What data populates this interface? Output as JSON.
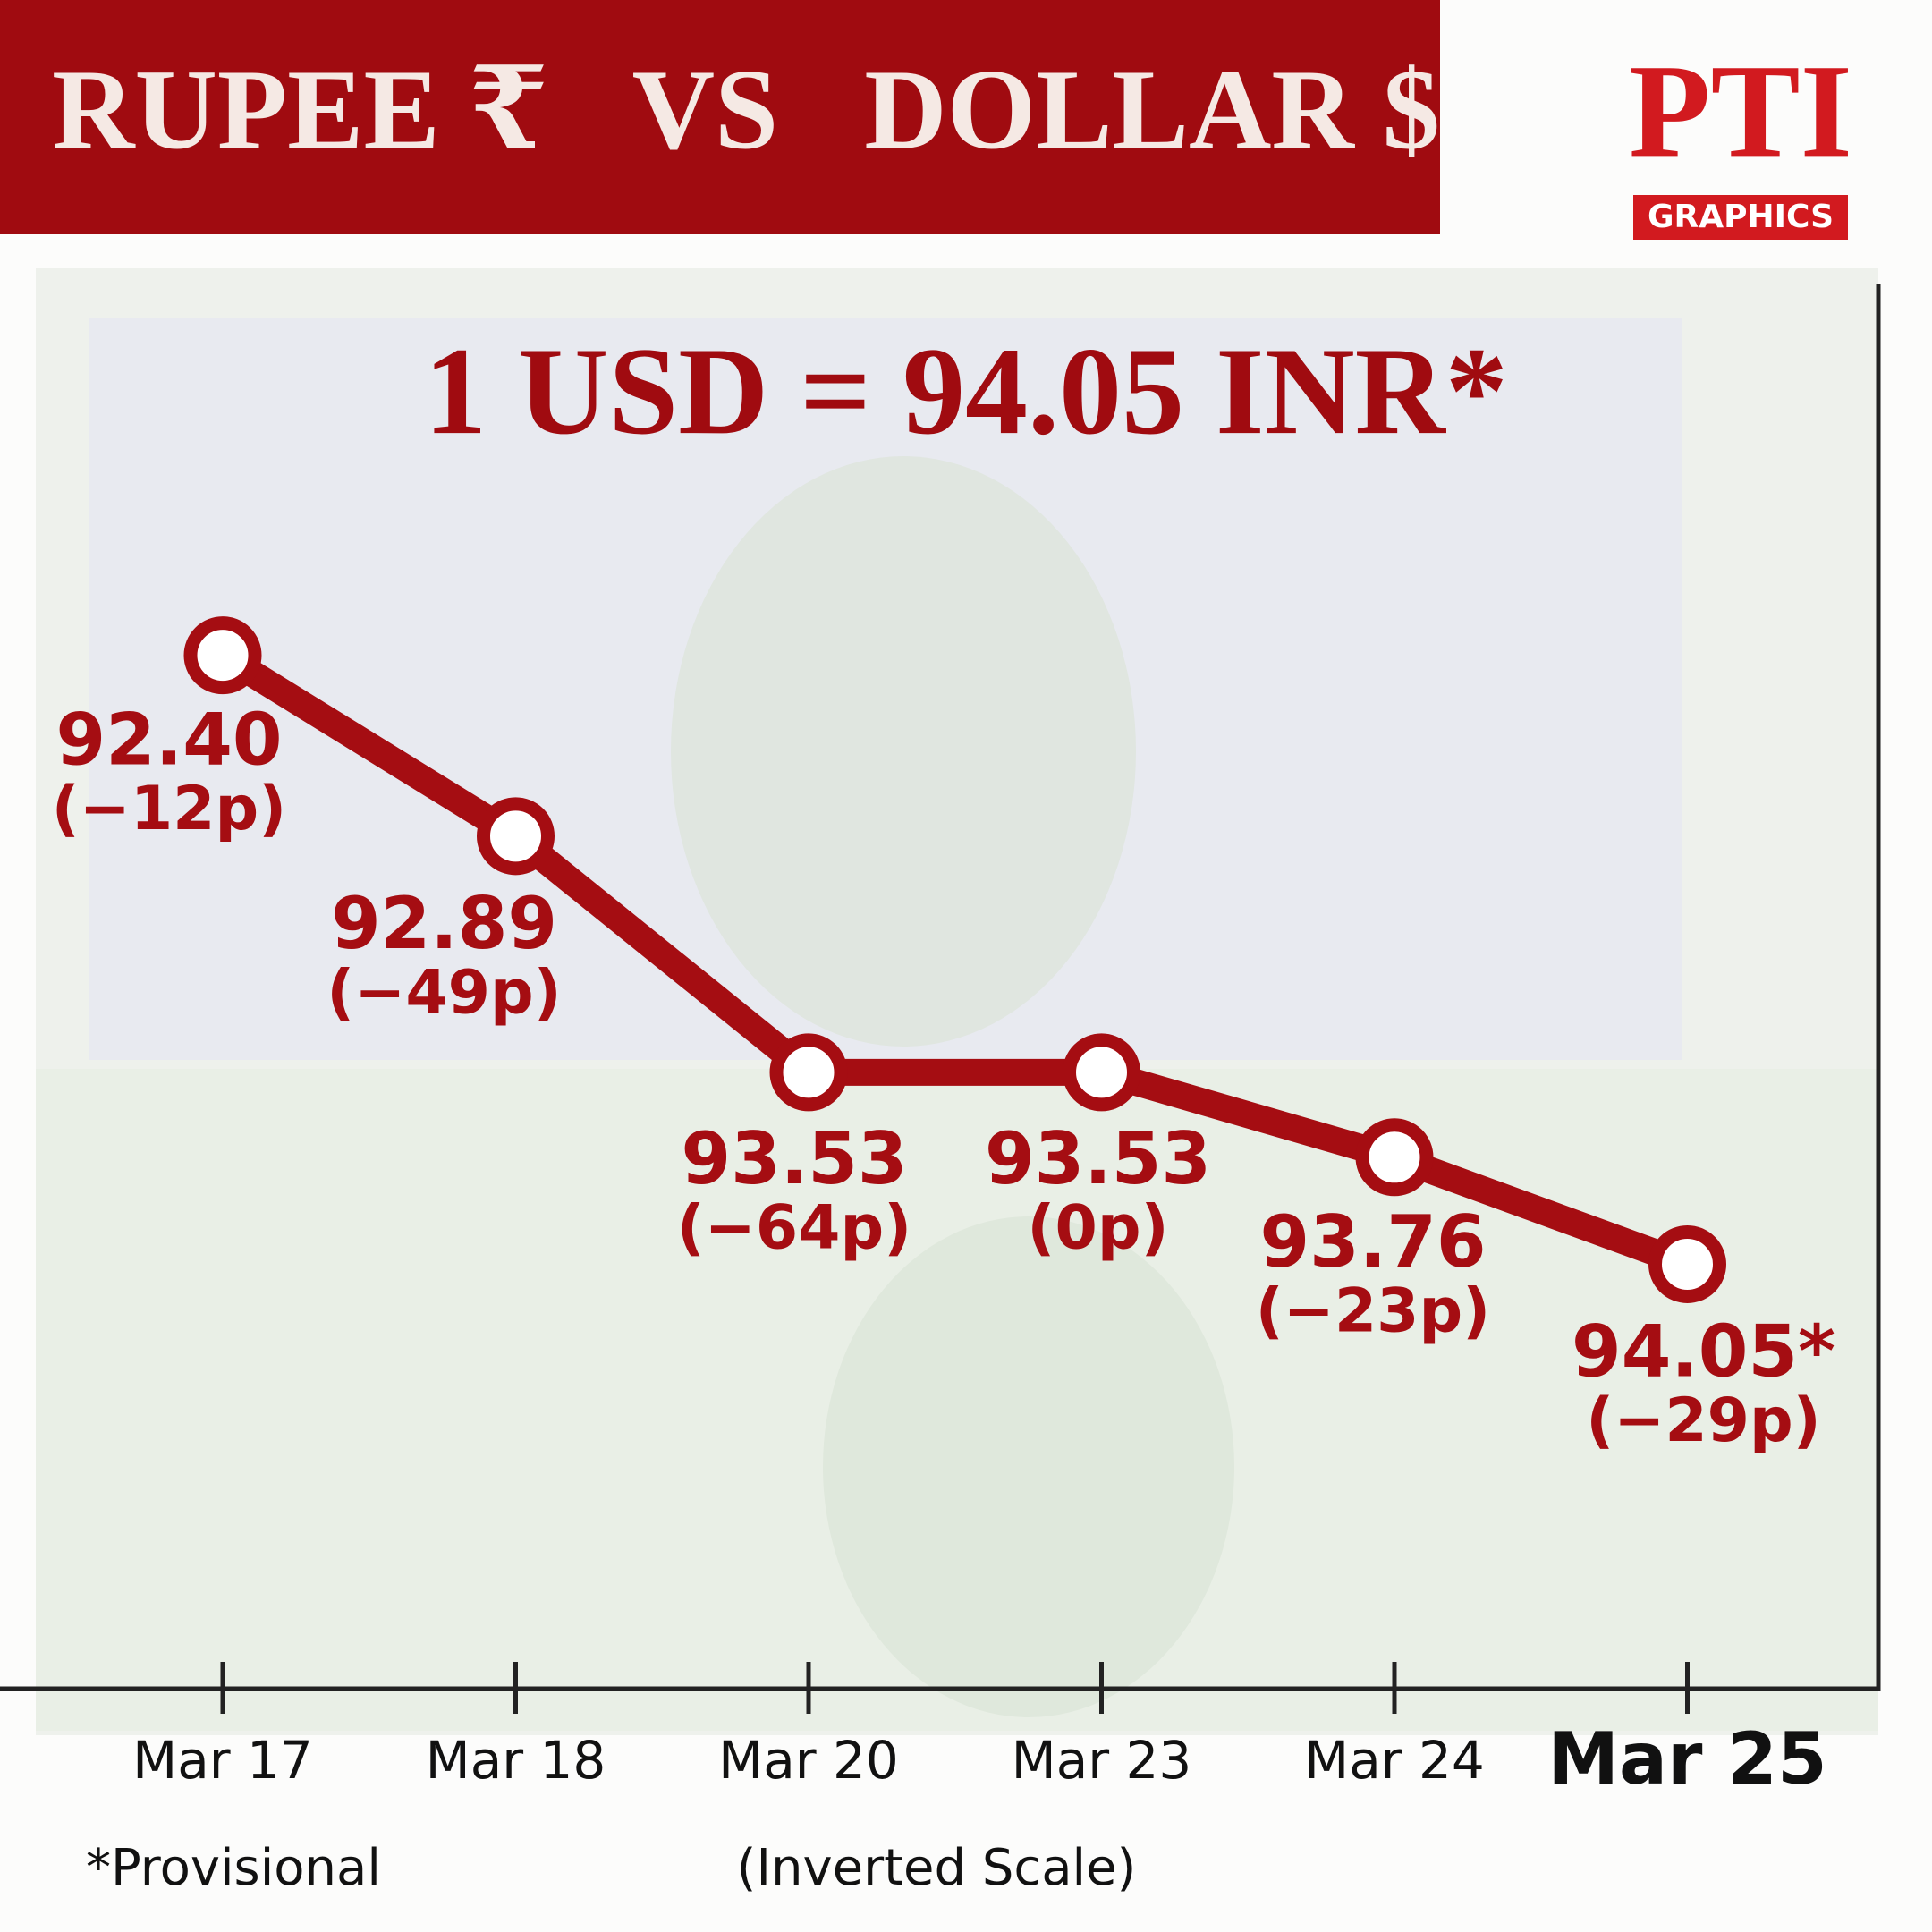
{
  "brand": {
    "mark": "PTI",
    "label": "GRAPHICS"
  },
  "chart_data": {
    "type": "line",
    "title": "RUPEE ₹   VS   DOLLAR $",
    "subtitle": "1 USD = 94.05 INR*",
    "categories": [
      "Mar 17",
      "Mar 18",
      "Mar 20",
      "Mar 23",
      "Mar 24",
      "Mar 25"
    ],
    "values": [
      92.4,
      92.89,
      93.53,
      93.53,
      93.76,
      94.05
    ],
    "value_labels": [
      "92.40",
      "92.89",
      "93.53",
      "93.53",
      "93.76",
      "94.05*"
    ],
    "annotations": [
      "(−12p)",
      "(−49p)",
      "(−64p)",
      "(0p)",
      "(−23p)",
      "(−29p)"
    ],
    "color": "#a50d12",
    "ylim": [
      91.4,
      95.2
    ],
    "inverted": true,
    "footnote": "*Provisional",
    "note": "(Inverted Scale)"
  }
}
